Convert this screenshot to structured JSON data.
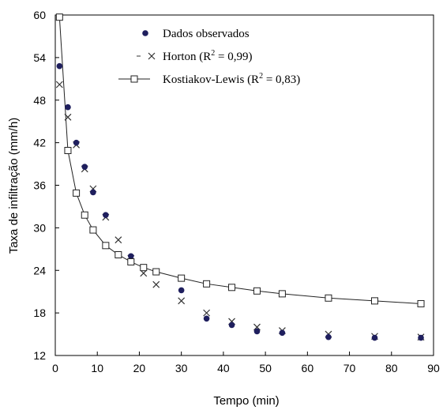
{
  "chart_data": {
    "type": "scatter",
    "xlabel": "Tempo (min)",
    "ylabel": "Taxa de infiltração (mm/h)",
    "xlim": [
      0,
      90
    ],
    "ylim": [
      12,
      60
    ],
    "xticks": [
      "0",
      "10",
      "20",
      "30",
      "40",
      "50",
      "60",
      "70",
      "80",
      "90"
    ],
    "yticks": [
      "12",
      "18",
      "24",
      "30",
      "36",
      "42",
      "48",
      "54",
      "60"
    ],
    "grid": false,
    "legend_position": "top-right",
    "series": [
      {
        "name": "Dados observados",
        "marker": "filled-circle",
        "color": "#1f1f5e",
        "x": [
          1,
          3,
          5,
          7,
          9,
          12,
          18,
          24,
          30,
          36,
          42,
          48,
          54,
          65,
          76,
          87
        ],
        "y": [
          52.8,
          47.0,
          42.0,
          38.6,
          35.0,
          31.8,
          26.0,
          23.8,
          21.2,
          17.2,
          16.3,
          15.4,
          15.2,
          14.6,
          14.5,
          14.5
        ]
      },
      {
        "name": "Horton (R² = 0,99)",
        "marker": "x",
        "color": "#333333",
        "x": [
          1,
          3,
          5,
          7,
          9,
          12,
          15,
          18,
          21,
          24,
          30,
          36,
          42,
          48,
          54,
          65,
          76,
          87
        ],
        "y": [
          50.2,
          45.6,
          41.7,
          38.3,
          35.5,
          31.5,
          28.3,
          25.7,
          23.6,
          22.0,
          19.7,
          18.0,
          16.8,
          16.0,
          15.5,
          15.0,
          14.7,
          14.6
        ]
      },
      {
        "name": "Kostiakov-Lewis (R² = 0,83)",
        "marker": "open-square-line",
        "color": "#000000",
        "x": [
          1,
          3,
          5,
          7,
          9,
          12,
          15,
          18,
          21,
          24,
          30,
          36,
          42,
          48,
          54,
          65,
          76,
          87
        ],
        "y": [
          59.7,
          40.9,
          34.9,
          31.8,
          29.7,
          27.5,
          26.2,
          25.2,
          24.4,
          23.8,
          22.9,
          22.1,
          21.6,
          21.1,
          20.7,
          20.1,
          19.7,
          19.3
        ]
      }
    ],
    "legend": [
      {
        "label": "Dados observados"
      },
      {
        "label": "Horton (R",
        "sup": "2",
        "rest": " = 0,99)"
      },
      {
        "label": "Kostiakov-Lewis (R",
        "sup": "2",
        "rest": " = 0,83)"
      }
    ]
  }
}
